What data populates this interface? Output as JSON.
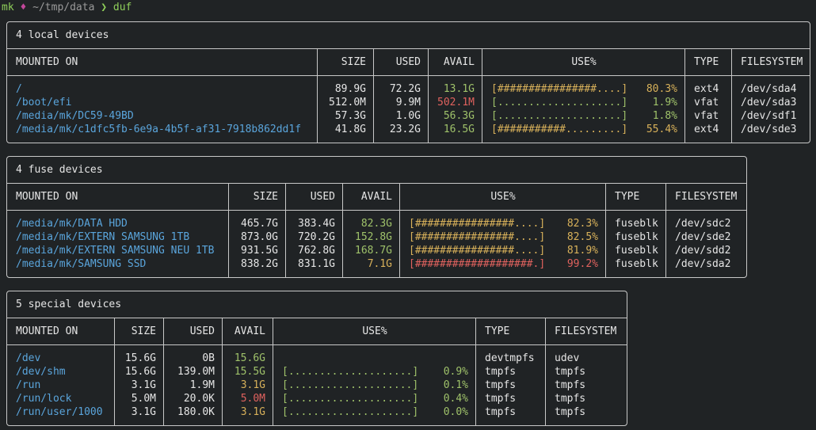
{
  "prompt": {
    "user": "mk",
    "path": "~/tmp/data",
    "command": "duf"
  },
  "headers": {
    "mounted_on": "MOUNTED ON",
    "size": "SIZE",
    "used": "USED",
    "avail": "AVAIL",
    "use": "USE%",
    "type": "TYPE",
    "filesystem": "FILESYSTEM"
  },
  "local": {
    "title": "4 local devices",
    "rows": [
      {
        "mount": "/",
        "size": "89.9G",
        "used": "72.2G",
        "avail": "13.1G",
        "avail_color": "green",
        "bar": "[################....]",
        "pct": "80.3%",
        "pct_color": "yellow",
        "type": "ext4",
        "fs": "/dev/sda4"
      },
      {
        "mount": "/boot/efi",
        "size": "512.0M",
        "used": "9.9M",
        "avail": "502.1M",
        "avail_color": "red",
        "bar": "[....................]",
        "pct": "1.9%",
        "pct_color": "green",
        "type": "vfat",
        "fs": "/dev/sda3"
      },
      {
        "mount": "/media/mk/DC59-49BD",
        "size": "57.3G",
        "used": "1.0G",
        "avail": "56.3G",
        "avail_color": "green",
        "bar": "[....................]",
        "pct": "1.8%",
        "pct_color": "green",
        "type": "vfat",
        "fs": "/dev/sdf1"
      },
      {
        "mount": "/media/mk/c1dfc5fb-6e9a-4b5f-af31-7918b862dd1f",
        "size": "41.8G",
        "used": "23.2G",
        "avail": "16.5G",
        "avail_color": "green",
        "bar": "[###########.........]",
        "pct": "55.4%",
        "pct_color": "yellow",
        "type": "ext4",
        "fs": "/dev/sde3"
      }
    ]
  },
  "fuse": {
    "title": "4 fuse devices",
    "rows": [
      {
        "mount": "/media/mk/DATA HDD",
        "size": "465.7G",
        "used": "383.4G",
        "avail": "82.3G",
        "avail_color": "green",
        "bar": "[################....]",
        "pct": "82.3%",
        "pct_color": "yellow",
        "type": "fuseblk",
        "fs": "/dev/sdc2"
      },
      {
        "mount": "/media/mk/EXTERN SAMSUNG 1TB",
        "size": "873.0G",
        "used": "720.2G",
        "avail": "152.8G",
        "avail_color": "green",
        "bar": "[################....]",
        "pct": "82.5%",
        "pct_color": "yellow",
        "type": "fuseblk",
        "fs": "/dev/sde2"
      },
      {
        "mount": "/media/mk/EXTERN SAMSUNG NEU 1TB",
        "size": "931.5G",
        "used": "762.8G",
        "avail": "168.7G",
        "avail_color": "green",
        "bar": "[################....]",
        "pct": "81.9%",
        "pct_color": "yellow",
        "type": "fuseblk",
        "fs": "/dev/sdd2"
      },
      {
        "mount": "/media/mk/SAMSUNG SSD",
        "size": "838.2G",
        "used": "831.1G",
        "avail": "7.1G",
        "avail_color": "yellow",
        "bar": "[###################.]",
        "pct": "99.2%",
        "pct_color": "red",
        "type": "fuseblk",
        "fs": "/dev/sda2"
      }
    ]
  },
  "special": {
    "title": "5 special devices",
    "rows": [
      {
        "mount": "/dev",
        "size": "15.6G",
        "used": "0B",
        "avail": "15.6G",
        "avail_color": "green",
        "bar": "",
        "pct": "",
        "pct_color": "green",
        "type": "devtmpfs",
        "fs": "udev"
      },
      {
        "mount": "/dev/shm",
        "size": "15.6G",
        "used": "139.0M",
        "avail": "15.5G",
        "avail_color": "green",
        "bar": "[....................]",
        "pct": "0.9%",
        "pct_color": "green",
        "type": "tmpfs",
        "fs": "tmpfs"
      },
      {
        "mount": "/run",
        "size": "3.1G",
        "used": "1.9M",
        "avail": "3.1G",
        "avail_color": "yellow",
        "bar": "[....................]",
        "pct": "0.1%",
        "pct_color": "green",
        "type": "tmpfs",
        "fs": "tmpfs"
      },
      {
        "mount": "/run/lock",
        "size": "5.0M",
        "used": "20.0K",
        "avail": "5.0M",
        "avail_color": "red",
        "bar": "[....................]",
        "pct": "0.4%",
        "pct_color": "green",
        "type": "tmpfs",
        "fs": "tmpfs"
      },
      {
        "mount": "/run/user/1000",
        "size": "3.1G",
        "used": "180.0K",
        "avail": "3.1G",
        "avail_color": "yellow",
        "bar": "[....................]",
        "pct": "0.0%",
        "pct_color": "green",
        "type": "tmpfs",
        "fs": "tmpfs"
      }
    ]
  }
}
